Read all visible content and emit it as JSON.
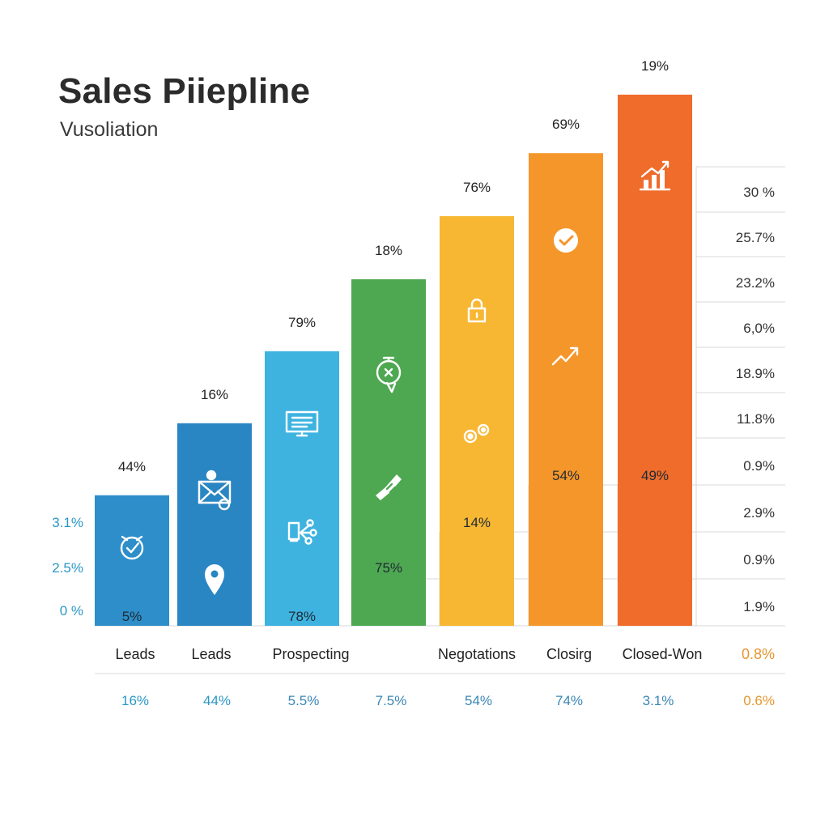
{
  "header": {
    "title": "Sales Piiepline",
    "subtitle": "Vusoliation"
  },
  "chart_data": {
    "type": "bar",
    "title": "Sales Piiepline",
    "subtitle": "Vusoliation",
    "ylim": [
      0,
      100
    ],
    "grid": true,
    "bars": [
      {
        "height": 29,
        "top_label": "44%",
        "inner_label": "5%",
        "color": "#2d8ec9",
        "icons": [
          "stopwatch-check-icon"
        ]
      },
      {
        "height": 45,
        "top_label": "16%",
        "inner_label": "",
        "color": "#2a86c2",
        "icons": [
          "envelope-gear-icon",
          "map-pin-icon"
        ]
      },
      {
        "height": 61,
        "top_label": "79%",
        "inner_label": "78%",
        "color": "#3eb3e0",
        "icons": [
          "monitor-icon",
          "device-share-icon"
        ]
      },
      {
        "height": 77,
        "top_label": "18%",
        "inner_label": "75%",
        "color": "#4ea852",
        "icons": [
          "timer-badge-icon",
          "handshake-icon"
        ]
      },
      {
        "height": 91,
        "top_label": "76%",
        "inner_label": "14%",
        "color": "#f7b733",
        "icons": [
          "lock-icon",
          "gears-icon"
        ]
      },
      {
        "height": 105,
        "top_label": "69%",
        "inner_label": "54%",
        "color": "#f5962b",
        "icons": [
          "check-circle-icon",
          "trend-arrow-icon"
        ]
      },
      {
        "height": 118,
        "top_label": "19%",
        "inner_label": "49%",
        "color": "#ef6c2b",
        "icons": [
          "growth-chart-icon"
        ]
      }
    ],
    "left_axis_labels": [
      "3.1%",
      "2.5%",
      "0 %"
    ],
    "right_axis_labels": [
      "30 %",
      "25.7%",
      "23.2%",
      "6,0%",
      "18.9%",
      "11.8%",
      "0.9%",
      "2.9%",
      "0.9%",
      "1.9%"
    ],
    "categories": [
      "Leads",
      "Leads",
      "Prospecting",
      "",
      "Negotations",
      "Closirg",
      "Closed-Won"
    ],
    "categories_extra": "0.8%",
    "bottom_values": [
      "16%",
      "44%",
      "5.5%",
      "7.5%",
      "54%",
      "74%",
      "3.1%"
    ],
    "bottom_values_extra": "0.6%",
    "colors": {
      "axis_left": "#2a97c7",
      "accent_orange": "#e8962e",
      "bottom_blue": "#3b86b5",
      "bottom_gray": "#555555",
      "grid": "#d9d9d9"
    }
  }
}
